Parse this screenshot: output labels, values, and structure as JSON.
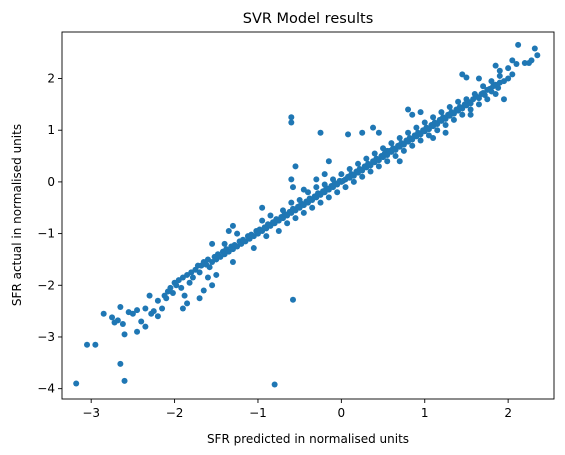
{
  "chart_data": {
    "type": "scatter",
    "title": "SVR Model results",
    "xlabel": "SFR predicted in normalised units",
    "ylabel": "SFR actual in normalised units",
    "xlim": [
      -3.35,
      2.55
    ],
    "ylim": [
      -4.2,
      2.9
    ],
    "xticks": [
      {
        "value": -3,
        "label": "−3"
      },
      {
        "value": -2,
        "label": "−2"
      },
      {
        "value": -1,
        "label": "−1"
      },
      {
        "value": 0,
        "label": "0"
      },
      {
        "value": 1,
        "label": "1"
      },
      {
        "value": 2,
        "label": "2"
      }
    ],
    "yticks": [
      {
        "value": -4,
        "label": "−4"
      },
      {
        "value": -3,
        "label": "−3"
      },
      {
        "value": -2,
        "label": "−2"
      },
      {
        "value": -1,
        "label": "−1"
      },
      {
        "value": 0,
        "label": "0"
      },
      {
        "value": 1,
        "label": "1"
      },
      {
        "value": 2,
        "label": "2"
      }
    ],
    "grid": false,
    "marker_color": "#1f77b4",
    "points": [
      [
        -3.18,
        -3.9
      ],
      [
        -3.05,
        -3.15
      ],
      [
        -2.95,
        -3.15
      ],
      [
        -2.85,
        -2.55
      ],
      [
        -2.75,
        -2.62
      ],
      [
        -2.72,
        -2.72
      ],
      [
        -2.68,
        -2.68
      ],
      [
        -2.65,
        -2.42
      ],
      [
        -2.62,
        -2.75
      ],
      [
        -2.6,
        -2.95
      ],
      [
        -2.55,
        -2.52
      ],
      [
        -2.5,
        -2.55
      ],
      [
        -2.45,
        -2.48
      ],
      [
        -2.65,
        -3.52
      ],
      [
        -2.6,
        -3.85
      ],
      [
        -2.4,
        -2.7
      ],
      [
        -2.35,
        -2.45
      ],
      [
        -2.3,
        -2.2
      ],
      [
        -2.28,
        -2.55
      ],
      [
        -2.25,
        -2.5
      ],
      [
        -2.2,
        -2.3
      ],
      [
        -2.15,
        -2.45
      ],
      [
        -2.12,
        -2.2
      ],
      [
        -2.1,
        -2.25
      ],
      [
        -2.08,
        -2.12
      ],
      [
        -2.05,
        -2.05
      ],
      [
        -2.02,
        -2.15
      ],
      [
        -2.0,
        -1.95
      ],
      [
        -1.98,
        -2.0
      ],
      [
        -1.95,
        -1.9
      ],
      [
        -1.92,
        -2.05
      ],
      [
        -1.9,
        -1.85
      ],
      [
        -1.88,
        -2.2
      ],
      [
        -1.85,
        -1.8
      ],
      [
        -1.82,
        -1.95
      ],
      [
        -1.8,
        -1.75
      ],
      [
        -1.78,
        -1.85
      ],
      [
        -1.75,
        -1.7
      ],
      [
        -1.72,
        -1.62
      ],
      [
        -1.7,
        -1.75
      ],
      [
        -1.68,
        -1.62
      ],
      [
        -1.65,
        -1.55
      ],
      [
        -1.62,
        -1.6
      ],
      [
        -1.6,
        -1.5
      ],
      [
        -1.58,
        -1.65
      ],
      [
        -1.55,
        -1.55
      ],
      [
        -1.52,
        -1.45
      ],
      [
        -1.5,
        -1.5
      ],
      [
        -1.48,
        -1.4
      ],
      [
        -1.45,
        -1.45
      ],
      [
        -1.42,
        -1.35
      ],
      [
        -1.4,
        -1.4
      ],
      [
        -1.38,
        -1.3
      ],
      [
        -1.35,
        -1.35
      ],
      [
        -1.32,
        -1.25
      ],
      [
        -1.3,
        -1.3
      ],
      [
        -1.28,
        -1.22
      ],
      [
        -1.25,
        -1.25
      ],
      [
        -1.22,
        -1.15
      ],
      [
        -1.2,
        -1.2
      ],
      [
        -1.18,
        -1.12
      ],
      [
        -1.15,
        -1.15
      ],
      [
        -1.12,
        -1.05
      ],
      [
        -1.1,
        -1.1
      ],
      [
        -1.08,
        -1.02
      ],
      [
        -1.05,
        -1.05
      ],
      [
        -1.02,
        -0.95
      ],
      [
        -1.0,
        -1.0
      ],
      [
        -0.98,
        -0.92
      ],
      [
        -0.95,
        -0.95
      ],
      [
        -0.92,
        -0.88
      ],
      [
        -0.9,
        -0.9
      ],
      [
        -0.88,
        -0.82
      ],
      [
        -0.85,
        -0.85
      ],
      [
        -0.82,
        -0.78
      ],
      [
        -0.8,
        -0.8
      ],
      [
        -0.78,
        -0.72
      ],
      [
        -0.75,
        -0.75
      ],
      [
        -0.72,
        -0.68
      ],
      [
        -0.7,
        -0.7
      ],
      [
        -0.68,
        -0.62
      ],
      [
        -0.65,
        -0.65
      ],
      [
        -0.62,
        -0.58
      ],
      [
        -0.6,
        -0.6
      ],
      [
        -0.58,
        -0.52
      ],
      [
        -0.55,
        -0.55
      ],
      [
        -0.52,
        -0.48
      ],
      [
        -0.5,
        -0.5
      ],
      [
        -0.48,
        -0.42
      ],
      [
        -0.45,
        -0.45
      ],
      [
        -0.42,
        -0.38
      ],
      [
        -0.4,
        -0.4
      ],
      [
        -0.38,
        -0.32
      ],
      [
        -0.35,
        -0.35
      ],
      [
        -0.32,
        -0.28
      ],
      [
        -0.3,
        -0.3
      ],
      [
        -0.28,
        -0.22
      ],
      [
        -0.25,
        -0.25
      ],
      [
        -0.22,
        -0.18
      ],
      [
        -0.2,
        -0.2
      ],
      [
        -0.18,
        -0.12
      ],
      [
        -0.15,
        -0.15
      ],
      [
        -0.12,
        -0.08
      ],
      [
        -0.1,
        -0.1
      ],
      [
        -0.08,
        -0.02
      ],
      [
        -0.05,
        -0.05
      ],
      [
        -0.02,
        0.02
      ],
      [
        0.0,
        0.0
      ],
      [
        -1.6,
        -1.85
      ],
      [
        -1.65,
        -2.1
      ],
      [
        -1.7,
        -2.25
      ],
      [
        -1.55,
        -2.0
      ],
      [
        -1.85,
        -2.35
      ],
      [
        -1.9,
        -2.45
      ],
      [
        -2.2,
        -2.6
      ],
      [
        -2.35,
        -2.8
      ],
      [
        -2.45,
        -2.9
      ],
      [
        -1.5,
        -1.8
      ],
      [
        -1.4,
        -1.2
      ],
      [
        -1.3,
        -1.55
      ],
      [
        -1.25,
        -1.0
      ],
      [
        -1.05,
        -1.28
      ],
      [
        -0.95,
        -0.75
      ],
      [
        -0.9,
        -1.05
      ],
      [
        -0.85,
        -0.65
      ],
      [
        -0.75,
        -0.95
      ],
      [
        -0.7,
        -0.55
      ],
      [
        -0.65,
        -0.8
      ],
      [
        -0.6,
        -0.4
      ],
      [
        -0.55,
        -0.7
      ],
      [
        -0.5,
        -0.35
      ],
      [
        -0.45,
        -0.6
      ],
      [
        -0.4,
        -0.2
      ],
      [
        -0.35,
        -0.5
      ],
      [
        -0.3,
        -0.1
      ],
      [
        -0.25,
        -0.4
      ],
      [
        -0.2,
        -0.05
      ],
      [
        -0.15,
        -0.3
      ],
      [
        -0.1,
        0.05
      ],
      [
        -0.05,
        -0.2
      ],
      [
        0.0,
        0.15
      ],
      [
        0.05,
        -0.1
      ],
      [
        -0.6,
        1.25
      ],
      [
        -0.6,
        1.15
      ],
      [
        -0.58,
        -2.28
      ],
      [
        -0.8,
        -3.92
      ],
      [
        -0.6,
        0.05
      ],
      [
        -0.58,
        -0.1
      ],
      [
        -0.55,
        0.3
      ],
      [
        -0.3,
        0.05
      ],
      [
        -0.25,
        0.95
      ],
      [
        -0.2,
        0.15
      ],
      [
        -0.15,
        0.4
      ],
      [
        0.08,
        0.92
      ],
      [
        0.25,
        0.95
      ],
      [
        0.38,
        1.05
      ],
      [
        0.45,
        0.95
      ],
      [
        0.55,
        0.6
      ],
      [
        -1.3,
        -0.85
      ],
      [
        -1.35,
        -0.95
      ],
      [
        -1.55,
        -1.2
      ],
      [
        -0.95,
        -0.5
      ],
      [
        -0.45,
        -0.15
      ],
      [
        0.02,
        0.02
      ],
      [
        0.05,
        0.05
      ],
      [
        0.08,
        0.1
      ],
      [
        0.1,
        0.08
      ],
      [
        0.12,
        0.15
      ],
      [
        0.15,
        0.12
      ],
      [
        0.18,
        0.2
      ],
      [
        0.2,
        0.18
      ],
      [
        0.22,
        0.25
      ],
      [
        0.25,
        0.22
      ],
      [
        0.28,
        0.3
      ],
      [
        0.3,
        0.28
      ],
      [
        0.32,
        0.35
      ],
      [
        0.35,
        0.32
      ],
      [
        0.38,
        0.4
      ],
      [
        0.4,
        0.38
      ],
      [
        0.42,
        0.45
      ],
      [
        0.45,
        0.42
      ],
      [
        0.48,
        0.5
      ],
      [
        0.5,
        0.48
      ],
      [
        0.52,
        0.55
      ],
      [
        0.55,
        0.52
      ],
      [
        0.58,
        0.6
      ],
      [
        0.6,
        0.58
      ],
      [
        0.62,
        0.65
      ],
      [
        0.65,
        0.62
      ],
      [
        0.68,
        0.7
      ],
      [
        0.7,
        0.68
      ],
      [
        0.72,
        0.75
      ],
      [
        0.75,
        0.72
      ],
      [
        0.78,
        0.8
      ],
      [
        0.8,
        0.78
      ],
      [
        0.82,
        0.85
      ],
      [
        0.85,
        0.82
      ],
      [
        0.88,
        0.9
      ],
      [
        0.9,
        0.88
      ],
      [
        0.92,
        0.95
      ],
      [
        0.95,
        0.92
      ],
      [
        0.98,
        1.0
      ],
      [
        1.0,
        0.98
      ],
      [
        1.02,
        1.05
      ],
      [
        1.05,
        1.02
      ],
      [
        1.08,
        1.1
      ],
      [
        1.1,
        1.08
      ],
      [
        1.12,
        1.15
      ],
      [
        1.15,
        1.12
      ],
      [
        1.18,
        1.2
      ],
      [
        1.2,
        1.18
      ],
      [
        1.22,
        1.25
      ],
      [
        1.25,
        1.22
      ],
      [
        1.28,
        1.3
      ],
      [
        1.3,
        1.28
      ],
      [
        1.32,
        1.35
      ],
      [
        1.35,
        1.32
      ],
      [
        1.38,
        1.4
      ],
      [
        1.4,
        1.38
      ],
      [
        1.42,
        1.45
      ],
      [
        1.45,
        1.42
      ],
      [
        1.48,
        1.5
      ],
      [
        1.5,
        1.48
      ],
      [
        1.52,
        1.55
      ],
      [
        1.55,
        1.52
      ],
      [
        1.58,
        1.6
      ],
      [
        1.62,
        1.65
      ],
      [
        1.65,
        1.62
      ],
      [
        1.68,
        1.7
      ],
      [
        1.7,
        1.72
      ],
      [
        1.72,
        1.68
      ],
      [
        1.75,
        1.78
      ],
      [
        1.78,
        1.8
      ],
      [
        1.8,
        1.75
      ],
      [
        1.82,
        1.85
      ],
      [
        1.85,
        1.88
      ],
      [
        1.88,
        1.82
      ],
      [
        1.9,
        1.92
      ],
      [
        1.95,
        1.95
      ],
      [
        2.0,
        2.0
      ],
      [
        2.05,
        2.08
      ],
      [
        0.1,
        0.25
      ],
      [
        0.15,
        0.0
      ],
      [
        0.2,
        0.35
      ],
      [
        0.25,
        0.1
      ],
      [
        0.3,
        0.45
      ],
      [
        0.35,
        0.2
      ],
      [
        0.4,
        0.55
      ],
      [
        0.45,
        0.3
      ],
      [
        0.5,
        0.65
      ],
      [
        0.55,
        0.4
      ],
      [
        0.6,
        0.75
      ],
      [
        0.65,
        0.5
      ],
      [
        0.7,
        0.85
      ],
      [
        0.75,
        0.6
      ],
      [
        0.8,
        0.95
      ],
      [
        0.85,
        0.7
      ],
      [
        0.9,
        1.05
      ],
      [
        0.95,
        0.8
      ],
      [
        1.0,
        1.15
      ],
      [
        1.05,
        0.9
      ],
      [
        1.1,
        1.25
      ],
      [
        1.15,
        1.0
      ],
      [
        1.2,
        1.35
      ],
      [
        1.25,
        1.1
      ],
      [
        1.3,
        1.45
      ],
      [
        1.35,
        1.2
      ],
      [
        1.4,
        1.55
      ],
      [
        1.45,
        1.3
      ],
      [
        1.5,
        1.6
      ],
      [
        1.55,
        1.4
      ],
      [
        1.6,
        1.7
      ],
      [
        1.65,
        1.5
      ],
      [
        1.7,
        1.85
      ],
      [
        1.75,
        1.6
      ],
      [
        1.8,
        1.95
      ],
      [
        1.85,
        1.7
      ],
      [
        1.9,
        2.05
      ],
      [
        0.8,
        1.4
      ],
      [
        0.85,
        1.3
      ],
      [
        0.95,
        1.35
      ],
      [
        1.45,
        2.08
      ],
      [
        1.5,
        2.02
      ],
      [
        1.65,
        2.0
      ],
      [
        1.85,
        2.25
      ],
      [
        1.9,
        2.15
      ],
      [
        2.0,
        2.2
      ],
      [
        2.05,
        2.35
      ],
      [
        2.1,
        2.28
      ],
      [
        2.12,
        2.65
      ],
      [
        2.2,
        2.3
      ],
      [
        2.25,
        2.3
      ],
      [
        2.28,
        2.35
      ],
      [
        2.32,
        2.58
      ],
      [
        2.35,
        2.45
      ],
      [
        1.95,
        1.6
      ],
      [
        1.55,
        1.3
      ],
      [
        1.25,
        0.95
      ],
      [
        1.1,
        0.85
      ],
      [
        0.7,
        0.4
      ]
    ]
  }
}
